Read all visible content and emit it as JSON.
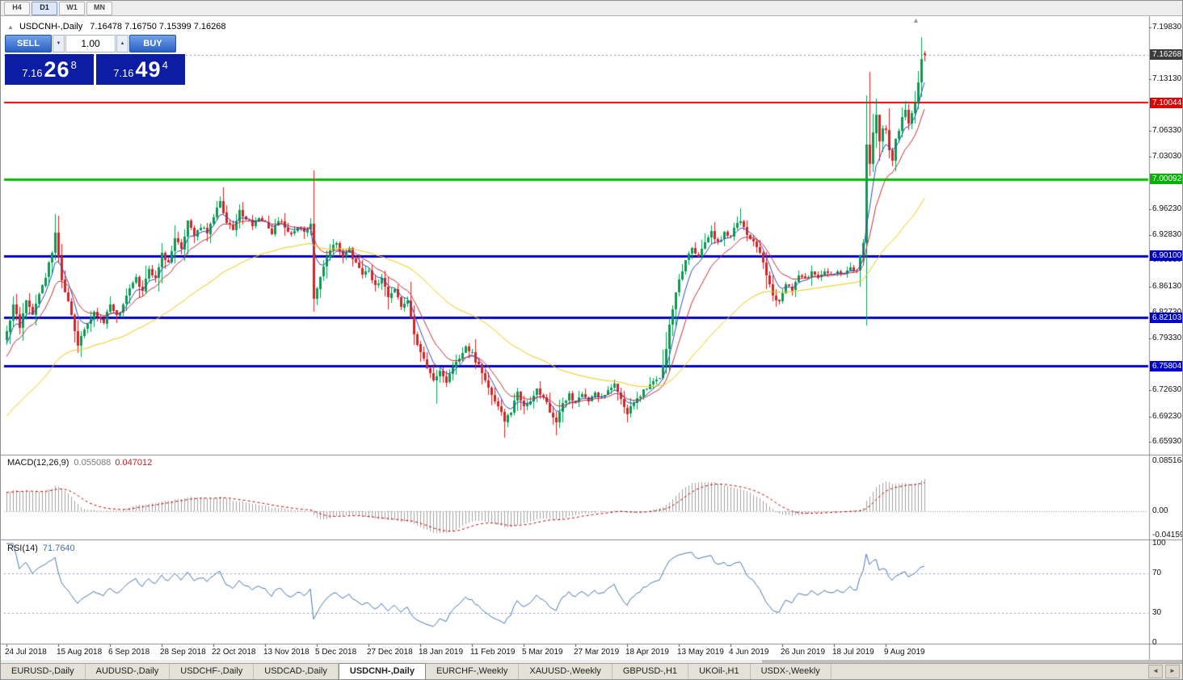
{
  "toolbar": {
    "timeframes": [
      {
        "label": "H4",
        "active": false
      },
      {
        "label": "D1",
        "active": true
      },
      {
        "label": "W1",
        "active": false
      },
      {
        "label": "MN",
        "active": false
      }
    ]
  },
  "chart_header": {
    "collapse_icon": "▲",
    "symbol_title": "USDCNH-,Daily",
    "ohlc_text": "7.16478 7.16750 7.15399 7.16268"
  },
  "trade_panel": {
    "sell_label": "SELL",
    "buy_label": "BUY",
    "volume": "1.00",
    "spinner_down": "▼",
    "spinner_up": "▲",
    "bid": {
      "prefix": "7.16",
      "big": "26",
      "sup": "8"
    },
    "ask": {
      "prefix": "7.16",
      "big": "49",
      "sup": "4"
    }
  },
  "marker": {
    "symbol": "▲"
  },
  "price_axis": {
    "ticks": [
      {
        "label": "7.19830",
        "value": 7.1983
      },
      {
        "label": "7.13130",
        "value": 7.1313
      },
      {
        "label": "7.06330",
        "value": 7.0633
      },
      {
        "label": "7.03030",
        "value": 7.0303
      },
      {
        "label": "6.96230",
        "value": 6.9623
      },
      {
        "label": "6.92830",
        "value": 6.9283
      },
      {
        "label": "6.89530",
        "value": 6.8953
      },
      {
        "label": "6.86130",
        "value": 6.8613
      },
      {
        "label": "6.82730",
        "value": 6.8273
      },
      {
        "label": "6.79330",
        "value": 6.7933
      },
      {
        "label": "6.72630",
        "value": 6.7263
      },
      {
        "label": "6.69230",
        "value": 6.6923
      },
      {
        "label": "6.65930",
        "value": 6.6593
      }
    ],
    "current": {
      "label": "7.16268",
      "value": 7.16268,
      "bg": "#3c3c3c"
    },
    "line_labels": [
      {
        "label": "7.10044",
        "value": 7.10044,
        "bg": "#dd0000"
      },
      {
        "label": "7.00092",
        "value": 7.00092,
        "bg": "#00b400"
      },
      {
        "label": "6.90100",
        "value": 6.901,
        "bg": "#0000cc"
      },
      {
        "label": "6.82103",
        "value": 6.82103,
        "bg": "#0000cc"
      },
      {
        "label": "6.75804",
        "value": 6.75804,
        "bg": "#0000cc"
      }
    ]
  },
  "macd_panel": {
    "name": "MACD(12,26,9)",
    "value_main": "0.055088",
    "value_signal": "0.047012",
    "axis": [
      {
        "label": "0.085164",
        "value": 0.085164
      },
      {
        "label": "0.00",
        "value": 0.0
      },
      {
        "label": "-0.041597",
        "value": -0.041597
      }
    ]
  },
  "rsi_panel": {
    "name": "RSI(14)",
    "value": "71.7640",
    "axis": [
      {
        "label": "100",
        "value": 100
      },
      {
        "label": "70",
        "value": 70
      },
      {
        "label": "30",
        "value": 30
      },
      {
        "label": "0",
        "value": 0
      }
    ]
  },
  "date_axis": [
    "24 Jul 2018",
    "15 Aug 2018",
    "6 Sep 2018",
    "28 Sep 2018",
    "22 Oct 2018",
    "13 Nov 2018",
    "5 Dec 2018",
    "27 Dec 2018",
    "18 Jan 2019",
    "11 Feb 2019",
    "5 Mar 2019",
    "27 Mar 2019",
    "18 Apr 2019",
    "13 May 2019",
    "4 Jun 2019",
    "26 Jun 2019",
    "18 Jul 2019",
    "9 Aug 2019"
  ],
  "tabs": {
    "items": [
      "EURUSD-,Daily",
      "AUDUSD-,Daily",
      "USDCHF-,Daily",
      "USDCAD-,Daily",
      "USDCNH-,Daily",
      "EURCHF-,Weekly",
      "XAUUSD-,Weekly",
      "GBPUSD-,H1",
      "UKOil-,H1",
      "USDX-,Weekly"
    ],
    "active_index": 4,
    "scroll_left": "◄",
    "scroll_right": "►"
  },
  "chart_data": {
    "type": "candlestick",
    "title": "USDCNH-,Daily",
    "ohlc_header": {
      "open": 7.16478,
      "high": 7.1675,
      "low": 7.15399,
      "close": 7.16268
    },
    "current_price": 7.16268,
    "y_range_visible": [
      6.6444,
      7.213
    ],
    "num_candles": 285,
    "candles_per_date_label": 16,
    "x_labels": [
      "24 Jul 2018",
      "15 Aug 2018",
      "6 Sep 2018",
      "28 Sep 2018",
      "22 Oct 2018",
      "13 Nov 2018",
      "5 Dec 2018",
      "27 Dec 2018",
      "18 Jan 2019",
      "11 Feb 2019",
      "5 Mar 2019",
      "27 Mar 2019",
      "18 Apr 2019",
      "13 May 2019",
      "4 Jun 2019",
      "26 Jun 2019",
      "18 Jul 2019",
      "9 Aug 2019"
    ],
    "pre_history_anchors": [
      [
        -40,
        6.585
      ],
      [
        -30,
        6.648
      ],
      [
        -20,
        6.705
      ],
      [
        -10,
        6.752
      ],
      [
        -1,
        6.792
      ]
    ],
    "close_anchors": [
      [
        0,
        6.8
      ],
      [
        2,
        6.836
      ],
      [
        4,
        6.81
      ],
      [
        6,
        6.845
      ],
      [
        8,
        6.826
      ],
      [
        10,
        6.854
      ],
      [
        12,
        6.872
      ],
      [
        14,
        6.908
      ],
      [
        15,
        6.93
      ],
      [
        17,
        6.87
      ],
      [
        19,
        6.84
      ],
      [
        22,
        6.786
      ],
      [
        24,
        6.806
      ],
      [
        27,
        6.828
      ],
      [
        30,
        6.812
      ],
      [
        32,
        6.84
      ],
      [
        34,
        6.822
      ],
      [
        36,
        6.838
      ],
      [
        38,
        6.856
      ],
      [
        40,
        6.872
      ],
      [
        42,
        6.856
      ],
      [
        44,
        6.882
      ],
      [
        46,
        6.87
      ],
      [
        48,
        6.906
      ],
      [
        50,
        6.892
      ],
      [
        52,
        6.926
      ],
      [
        54,
        6.912
      ],
      [
        56,
        6.944
      ],
      [
        58,
        6.928
      ],
      [
        60,
        6.94
      ],
      [
        62,
        6.93
      ],
      [
        64,
        6.954
      ],
      [
        66,
        6.97
      ],
      [
        68,
        6.946
      ],
      [
        70,
        6.936
      ],
      [
        72,
        6.96
      ],
      [
        74,
        6.95
      ],
      [
        76,
        6.94
      ],
      [
        78,
        6.95
      ],
      [
        80,
        6.944
      ],
      [
        82,
        6.932
      ],
      [
        84,
        6.948
      ],
      [
        86,
        6.938
      ],
      [
        88,
        6.928
      ],
      [
        90,
        6.94
      ],
      [
        92,
        6.932
      ],
      [
        94,
        6.944
      ],
      [
        95,
        6.848
      ],
      [
        97,
        6.874
      ],
      [
        99,
        6.9
      ],
      [
        102,
        6.92
      ],
      [
        104,
        6.898
      ],
      [
        106,
        6.91
      ],
      [
        108,
        6.89
      ],
      [
        110,
        6.876
      ],
      [
        112,
        6.882
      ],
      [
        114,
        6.86
      ],
      [
        116,
        6.87
      ],
      [
        118,
        6.846
      ],
      [
        120,
        6.856
      ],
      [
        122,
        6.836
      ],
      [
        124,
        6.844
      ],
      [
        126,
        6.8
      ],
      [
        128,
        6.776
      ],
      [
        130,
        6.756
      ],
      [
        132,
        6.74
      ],
      [
        134,
        6.75
      ],
      [
        136,
        6.736
      ],
      [
        138,
        6.758
      ],
      [
        140,
        6.77
      ],
      [
        142,
        6.784
      ],
      [
        144,
        6.774
      ],
      [
        146,
        6.758
      ],
      [
        148,
        6.74
      ],
      [
        150,
        6.72
      ],
      [
        152,
        6.704
      ],
      [
        154,
        6.686
      ],
      [
        156,
        6.7
      ],
      [
        158,
        6.724
      ],
      [
        160,
        6.704
      ],
      [
        162,
        6.714
      ],
      [
        164,
        6.728
      ],
      [
        166,
        6.716
      ],
      [
        168,
        6.7
      ],
      [
        170,
        6.688
      ],
      [
        172,
        6.71
      ],
      [
        174,
        6.72
      ],
      [
        176,
        6.71
      ],
      [
        178,
        6.72
      ],
      [
        180,
        6.712
      ],
      [
        182,
        6.724
      ],
      [
        184,
        6.716
      ],
      [
        186,
        6.728
      ],
      [
        188,
        6.734
      ],
      [
        190,
        6.714
      ],
      [
        192,
        6.698
      ],
      [
        194,
        6.71
      ],
      [
        196,
        6.72
      ],
      [
        198,
        6.73
      ],
      [
        200,
        6.736
      ],
      [
        202,
        6.742
      ],
      [
        204,
        6.778
      ],
      [
        205,
        6.81
      ],
      [
        206,
        6.834
      ],
      [
        207,
        6.856
      ],
      [
        208,
        6.87
      ],
      [
        210,
        6.896
      ],
      [
        212,
        6.91
      ],
      [
        214,
        6.9
      ],
      [
        216,
        6.916
      ],
      [
        218,
        6.932
      ],
      [
        220,
        6.92
      ],
      [
        222,
        6.93
      ],
      [
        224,
        6.928
      ],
      [
        226,
        6.942
      ],
      [
        227,
        6.948
      ],
      [
        229,
        6.928
      ],
      [
        231,
        6.918
      ],
      [
        233,
        6.906
      ],
      [
        235,
        6.876
      ],
      [
        237,
        6.85
      ],
      [
        239,
        6.842
      ],
      [
        241,
        6.866
      ],
      [
        243,
        6.856
      ],
      [
        245,
        6.878
      ],
      [
        247,
        6.87
      ],
      [
        249,
        6.882
      ],
      [
        251,
        6.874
      ],
      [
        253,
        6.882
      ],
      [
        255,
        6.878
      ],
      [
        257,
        6.882
      ],
      [
        259,
        6.876
      ],
      [
        261,
        6.884
      ],
      [
        263,
        6.88
      ],
      [
        265,
        6.918
      ],
      [
        266,
        7.046
      ],
      [
        267,
        7.022
      ],
      [
        268,
        7.06
      ],
      [
        269,
        7.086
      ],
      [
        270,
        7.05
      ],
      [
        271,
        7.07
      ],
      [
        272,
        7.064
      ],
      [
        273,
        7.038
      ],
      [
        274,
        7.026
      ],
      [
        275,
        7.056
      ],
      [
        276,
        7.062
      ],
      [
        277,
        7.082
      ],
      [
        278,
        7.092
      ],
      [
        279,
        7.074
      ],
      [
        280,
        7.084
      ],
      [
        281,
        7.102
      ],
      [
        282,
        7.126
      ],
      [
        283,
        7.155
      ],
      [
        284,
        7.16268
      ]
    ],
    "wick_overrides": [
      {
        "i": 15,
        "h": 6.956
      },
      {
        "i": 95,
        "l": 6.828
      },
      {
        "i": 126,
        "l": 6.786
      },
      {
        "i": 133,
        "l": 6.708
      },
      {
        "i": 154,
        "l": 6.664
      },
      {
        "i": 170,
        "l": 6.668
      },
      {
        "i": 192,
        "l": 6.684
      },
      {
        "i": 227,
        "h": 6.963
      },
      {
        "i": 266,
        "h": 7.11
      },
      {
        "i": 267,
        "h": 7.14,
        "l": 7.004
      },
      {
        "i": 268,
        "l": 7.01
      },
      {
        "i": 283,
        "h": 7.186
      },
      {
        "i": 284,
        "o": 7.16478,
        "h": 7.1675,
        "l": 7.15399
      }
    ],
    "horizontal_lines": [
      {
        "value": 7.10044,
        "color": "#dd0000",
        "width": 2
      },
      {
        "value": 7.00092,
        "color": "#00bf00",
        "width": 3
      },
      {
        "value": 6.901,
        "color": "#0000cc",
        "width": 3
      },
      {
        "value": 6.82103,
        "color": "#0000cc",
        "width": 3
      },
      {
        "value": 6.75804,
        "color": "#0000cc",
        "width": 3
      }
    ],
    "indicators": {
      "ma": [
        {
          "period": 6,
          "color": "#3148b8"
        },
        {
          "period": 13,
          "color": "#c03038"
        },
        {
          "period": 55,
          "color": "#ecc80a"
        }
      ],
      "macd": {
        "fast": 12,
        "slow": 26,
        "signal": 9,
        "hist_color": "#a2a2a2",
        "signal_color": "#cc0000",
        "axis_max": 0.085164,
        "axis_min": -0.041597
      },
      "rsi": {
        "period": 14,
        "color": "#4878b0",
        "levels": [
          70,
          30
        ]
      }
    },
    "candle_colors": {
      "up": "#00a050",
      "down": "#e02020"
    }
  }
}
